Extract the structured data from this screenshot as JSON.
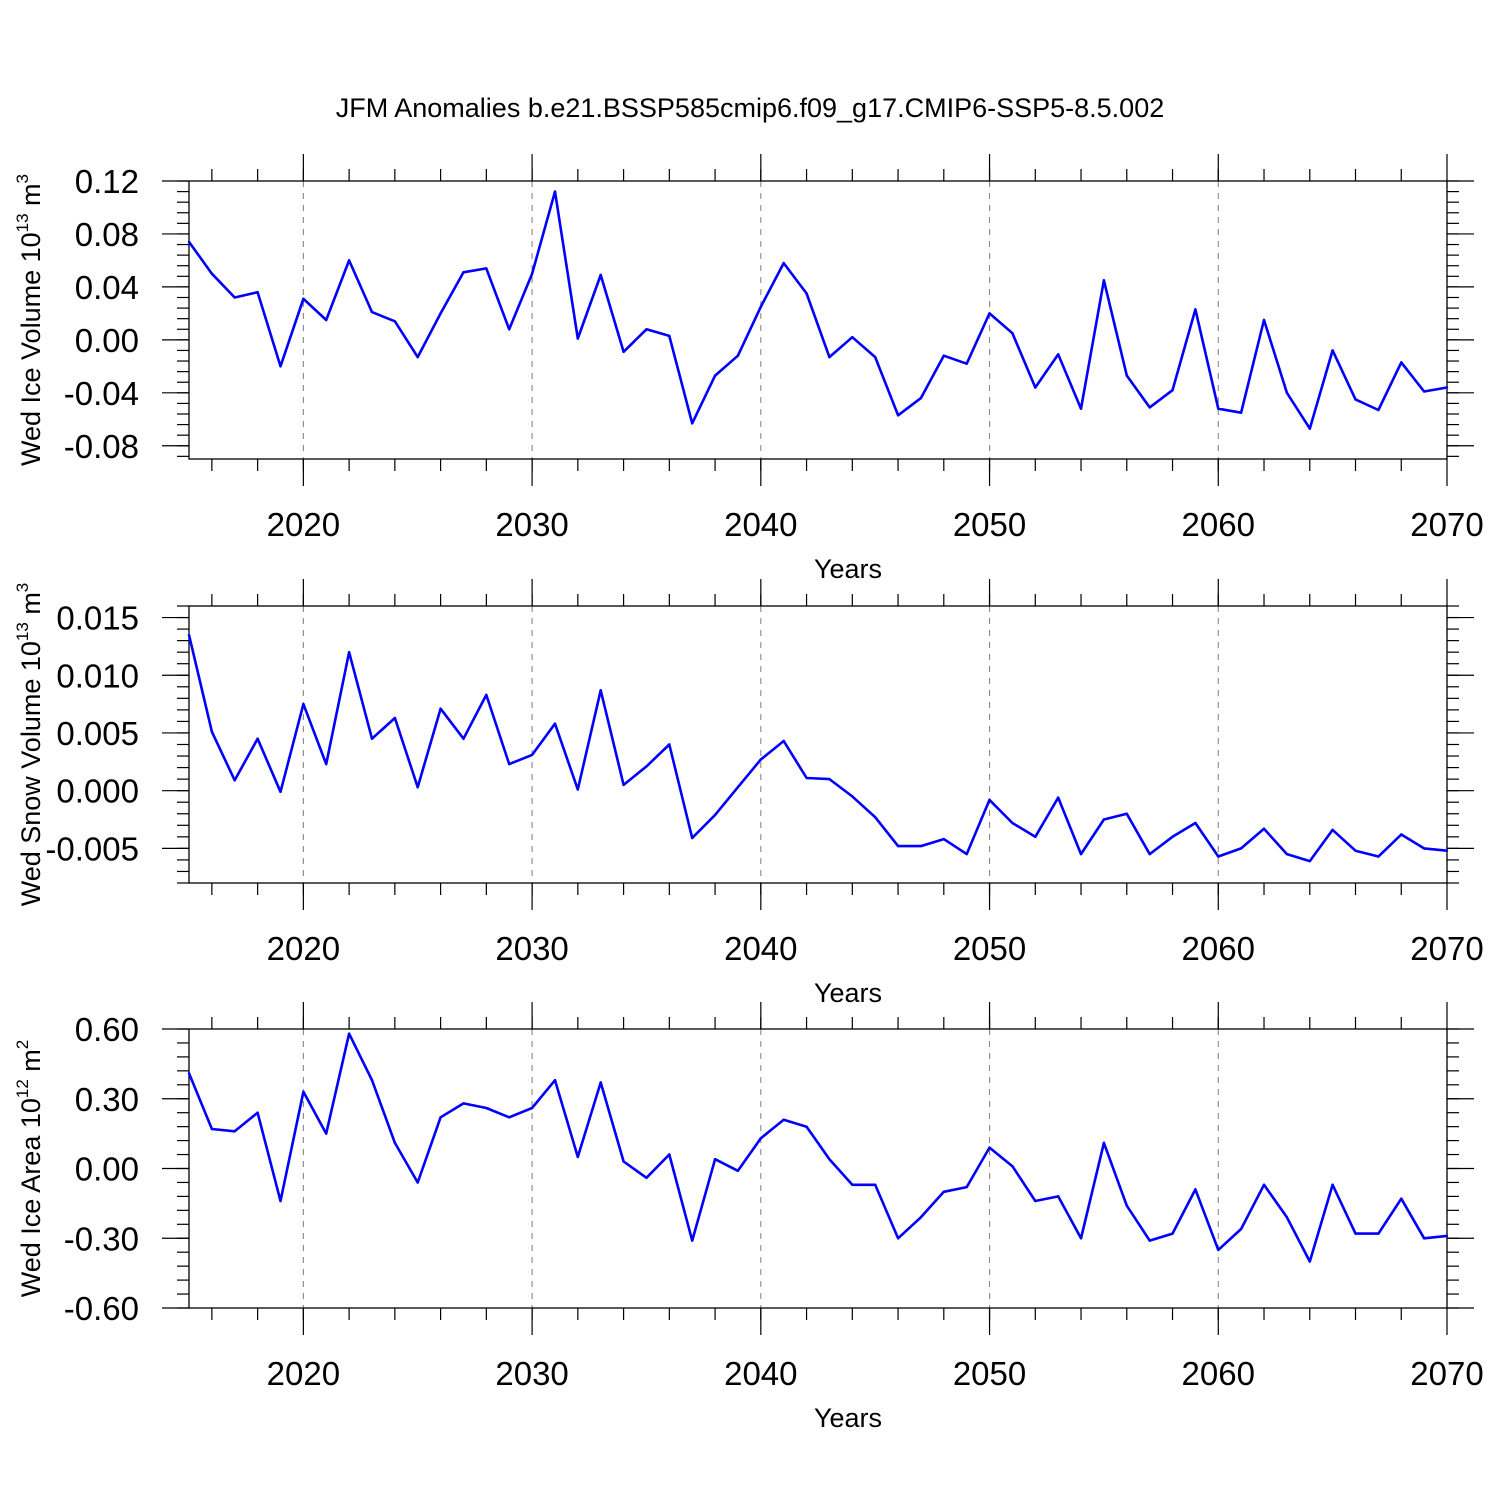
{
  "title": "JFM Anomalies b.e21.BSSP585cmip6.f09_g17.CMIP6-SSP5-8.5.002",
  "chart_data": [
    {
      "type": "line",
      "ylabel": {
        "base": "Wed Ice Volume 10",
        "exp": "13",
        "unit": " m",
        "unit_exp": "3"
      },
      "xlabel": "Years",
      "xlim": [
        2015,
        2070
      ],
      "ylim": [
        -0.09,
        0.12
      ],
      "yticks": [
        0.12,
        0.08,
        0.04,
        0.0,
        -0.04,
        -0.08
      ],
      "yticklabels": [
        "0.12",
        "0.08",
        "0.04",
        "0.00",
        "-0.04",
        "-0.08"
      ],
      "xticks": [
        2020,
        2030,
        2040,
        2050,
        2060,
        2070
      ],
      "xticklabels": [
        "2020",
        "2030",
        "2040",
        "2050",
        "2060",
        "2070"
      ],
      "grid": "vertical dashed at major x ticks",
      "color": "#0000ff",
      "x": [
        2015,
        2016,
        2017,
        2018,
        2019,
        2020,
        2021,
        2022,
        2023,
        2024,
        2025,
        2026,
        2027,
        2028,
        2029,
        2030,
        2031,
        2032,
        2033,
        2034,
        2035,
        2036,
        2037,
        2038,
        2039,
        2040,
        2041,
        2042,
        2043,
        2044,
        2045,
        2046,
        2047,
        2048,
        2049,
        2050,
        2051,
        2052,
        2053,
        2054,
        2055,
        2056,
        2057,
        2058,
        2059,
        2060,
        2061,
        2062,
        2063,
        2064,
        2065,
        2066,
        2067,
        2068,
        2069,
        2070
      ],
      "y": [
        0.074,
        0.05,
        0.032,
        0.036,
        -0.02,
        0.031,
        0.015,
        0.06,
        0.021,
        0.014,
        -0.013,
        0.02,
        0.051,
        0.054,
        0.008,
        0.05,
        0.112,
        0.001,
        0.049,
        -0.009,
        0.008,
        0.003,
        -0.063,
        -0.027,
        -0.012,
        0.025,
        0.058,
        0.035,
        -0.013,
        0.002,
        -0.013,
        -0.057,
        -0.044,
        -0.012,
        -0.018,
        0.02,
        0.005,
        -0.036,
        -0.011,
        -0.052,
        0.045,
        -0.027,
        -0.051,
        -0.038,
        0.023,
        -0.052,
        -0.055,
        0.015,
        -0.04,
        -0.067,
        -0.008,
        -0.045,
        -0.053,
        -0.017,
        -0.039,
        -0.036
      ]
    },
    {
      "type": "line",
      "ylabel": {
        "base": "Wed Snow Volume 10",
        "exp": "13",
        "unit": " m",
        "unit_exp": "3"
      },
      "xlabel": "Years",
      "xlim": [
        2015,
        2070
      ],
      "ylim": [
        -0.008,
        0.016
      ],
      "yticks": [
        0.015,
        0.01,
        0.005,
        0.0,
        -0.005
      ],
      "yticklabels": [
        "0.015",
        "0.010",
        "0.005",
        "0.000",
        "-0.005"
      ],
      "xticks": [
        2020,
        2030,
        2040,
        2050,
        2060,
        2070
      ],
      "xticklabels": [
        "2020",
        "2030",
        "2040",
        "2050",
        "2060",
        "2070"
      ],
      "grid": "vertical dashed at major x ticks",
      "color": "#0000ff",
      "x": [
        2015,
        2016,
        2017,
        2018,
        2019,
        2020,
        2021,
        2022,
        2023,
        2024,
        2025,
        2026,
        2027,
        2028,
        2029,
        2030,
        2031,
        2032,
        2033,
        2034,
        2035,
        2036,
        2037,
        2038,
        2039,
        2040,
        2041,
        2042,
        2043,
        2044,
        2045,
        2046,
        2047,
        2048,
        2049,
        2050,
        2051,
        2052,
        2053,
        2054,
        2055,
        2056,
        2057,
        2058,
        2059,
        2060,
        2061,
        2062,
        2063,
        2064,
        2065,
        2066,
        2067,
        2068,
        2069,
        2070
      ],
      "y": [
        0.0135,
        0.0051,
        0.0009,
        0.0045,
        -0.0001,
        0.0075,
        0.0023,
        0.012,
        0.0045,
        0.0063,
        0.0003,
        0.0071,
        0.0045,
        0.0083,
        0.0023,
        0.0031,
        0.0058,
        0.0001,
        0.0087,
        0.0005,
        0.0021,
        0.004,
        -0.0041,
        -0.0021,
        0.0003,
        0.0027,
        0.0043,
        0.0011,
        0.001,
        -0.0005,
        -0.0023,
        -0.0048,
        -0.0048,
        -0.0042,
        -0.0055,
        -0.0008,
        -0.0028,
        -0.004,
        -0.0006,
        -0.0055,
        -0.0025,
        -0.002,
        -0.0055,
        -0.004,
        -0.0028,
        -0.0057,
        -0.005,
        -0.0033,
        -0.0055,
        -0.0061,
        -0.0034,
        -0.0052,
        -0.0057,
        -0.0038,
        -0.005,
        -0.0052
      ]
    },
    {
      "type": "line",
      "ylabel": {
        "base": "Wed Ice Area 10",
        "exp": "12",
        "unit": " m",
        "unit_exp": "2"
      },
      "xlabel": "Years",
      "xlim": [
        2015,
        2070
      ],
      "ylim": [
        -0.6,
        0.6
      ],
      "yticks": [
        0.6,
        0.3,
        0.0,
        -0.3,
        -0.6
      ],
      "yticklabels": [
        "0.60",
        "0.30",
        "0.00",
        "-0.30",
        "-0.60"
      ],
      "xticks": [
        2020,
        2030,
        2040,
        2050,
        2060,
        2070
      ],
      "xticklabels": [
        "2020",
        "2030",
        "2040",
        "2050",
        "2060",
        "2070"
      ],
      "grid": "vertical dashed at major x ticks",
      "color": "#0000ff",
      "x": [
        2015,
        2016,
        2017,
        2018,
        2019,
        2020,
        2021,
        2022,
        2023,
        2024,
        2025,
        2026,
        2027,
        2028,
        2029,
        2030,
        2031,
        2032,
        2033,
        2034,
        2035,
        2036,
        2037,
        2038,
        2039,
        2040,
        2041,
        2042,
        2043,
        2044,
        2045,
        2046,
        2047,
        2048,
        2049,
        2050,
        2051,
        2052,
        2053,
        2054,
        2055,
        2056,
        2057,
        2058,
        2059,
        2060,
        2061,
        2062,
        2063,
        2064,
        2065,
        2066,
        2067,
        2068,
        2069,
        2070
      ],
      "y": [
        0.41,
        0.17,
        0.16,
        0.24,
        -0.14,
        0.33,
        0.15,
        0.58,
        0.38,
        0.11,
        -0.06,
        0.22,
        0.28,
        0.26,
        0.22,
        0.26,
        0.38,
        0.05,
        0.37,
        0.03,
        -0.04,
        0.06,
        -0.31,
        0.04,
        -0.01,
        0.13,
        0.21,
        0.18,
        0.04,
        -0.07,
        -0.07,
        -0.3,
        -0.21,
        -0.1,
        -0.08,
        0.09,
        0.01,
        -0.14,
        -0.12,
        -0.3,
        0.11,
        -0.16,
        -0.31,
        -0.28,
        -0.09,
        -0.35,
        -0.26,
        -0.07,
        -0.21,
        -0.4,
        -0.07,
        -0.28,
        -0.28,
        -0.13,
        -0.3,
        -0.29
      ]
    }
  ]
}
